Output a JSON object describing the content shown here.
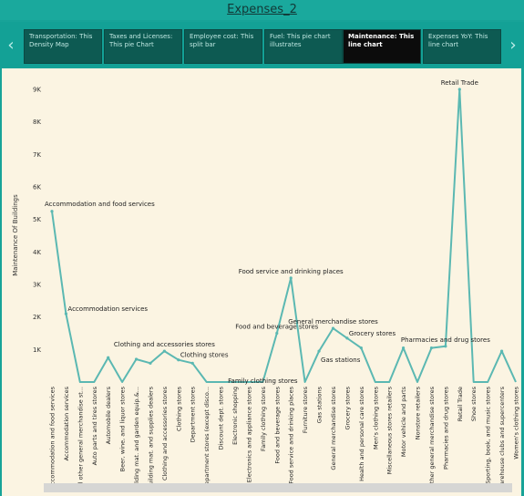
{
  "window": {
    "title": "Expenses_2"
  },
  "tabs": [
    {
      "label": "Transportation: This Density Map",
      "active": false
    },
    {
      "label": "Taxes and Licenses: This pie Chart",
      "active": false
    },
    {
      "label": "Employee cost: This split bar",
      "active": false
    },
    {
      "label": "Fuel: This pie chart illustrates",
      "active": false
    },
    {
      "label": "Maintenance: This line chart",
      "active": true
    },
    {
      "label": "Expenses YoY: This line chart",
      "active": false
    }
  ],
  "icons": {
    "prev": "chevron-left-icon",
    "next": "chevron-right-icon"
  },
  "colors": {
    "line": "#5bb8b2",
    "active_tab": "#0c0c0c",
    "tab": "#0d5a52",
    "panel": "#fbf4e2"
  },
  "chart_data": {
    "type": "line",
    "title": "",
    "xlabel": "",
    "ylabel": "Maintenance Of Buildings",
    "ylim": [
      0,
      9400
    ],
    "yticks": [
      1000,
      2000,
      3000,
      4000,
      5000,
      6000,
      7000,
      8000,
      9000
    ],
    "ytick_labels": [
      "1K",
      "2K",
      "3K",
      "4K",
      "5K",
      "6K",
      "7K",
      "8K",
      "9K"
    ],
    "grid": false,
    "categories": [
      "Accommodation and food services",
      "Accommodation services",
      "All other general merchandise st...",
      "Auto parts and tires stores",
      "Automobile dealers",
      "Beer, wine, and liquor stores",
      "Building mat. and garden equip.&...",
      "Building mat. and supplies dealers",
      "Clothing and accessories stores",
      "Clothing stores",
      "Department stores",
      "Department stores (except disco...",
      "Discount dept. stores",
      "Electronic shopping",
      "Electronics and appliance stores",
      "Family clothing stores",
      "Food and beverage stores",
      "Food service and drinking places",
      "Furniture stores",
      "Gas stations",
      "General merchandise stores",
      "Grocery stores",
      "Health and personal care stores",
      "Men's clothing stores",
      "Miscellaneous stores retailers",
      "Motor vehicle and parts",
      "Nonstore retailers",
      "Other general merchandise stores",
      "Pharmacies and drug stores",
      "Retail Trade",
      "Shoe stores",
      "Sporting, book, and music stores",
      "Warehouse clubs and supercenters",
      "Women's clothing stores"
    ],
    "values": [
      5250,
      2100,
      0,
      0,
      750,
      0,
      700,
      580,
      950,
      680,
      580,
      0,
      0,
      0,
      0,
      0,
      1500,
      3200,
      0,
      950,
      1650,
      1350,
      1050,
      0,
      0,
      1050,
      0,
      1050,
      1100,
      9000,
      0,
      0,
      950,
      0
    ],
    "data_labels": [
      {
        "index": 0,
        "text": "Accommodation and food services"
      },
      {
        "index": 1,
        "text": "Accommodation services"
      },
      {
        "index": 8,
        "text": "Clothing and accessories stores"
      },
      {
        "index": 9,
        "text": "Clothing stores"
      },
      {
        "index": 15,
        "text": "Family clothing stores"
      },
      {
        "index": 16,
        "text": "Food and beverage stores"
      },
      {
        "index": 17,
        "text": "Food service and drinking places"
      },
      {
        "index": 19,
        "text": "Gas stations"
      },
      {
        "index": 20,
        "text": "General merchandise stores"
      },
      {
        "index": 21,
        "text": "Grocery stores"
      },
      {
        "index": 28,
        "text": "Pharmacies and drug stores"
      },
      {
        "index": 29,
        "text": "Retail Trade"
      }
    ]
  }
}
